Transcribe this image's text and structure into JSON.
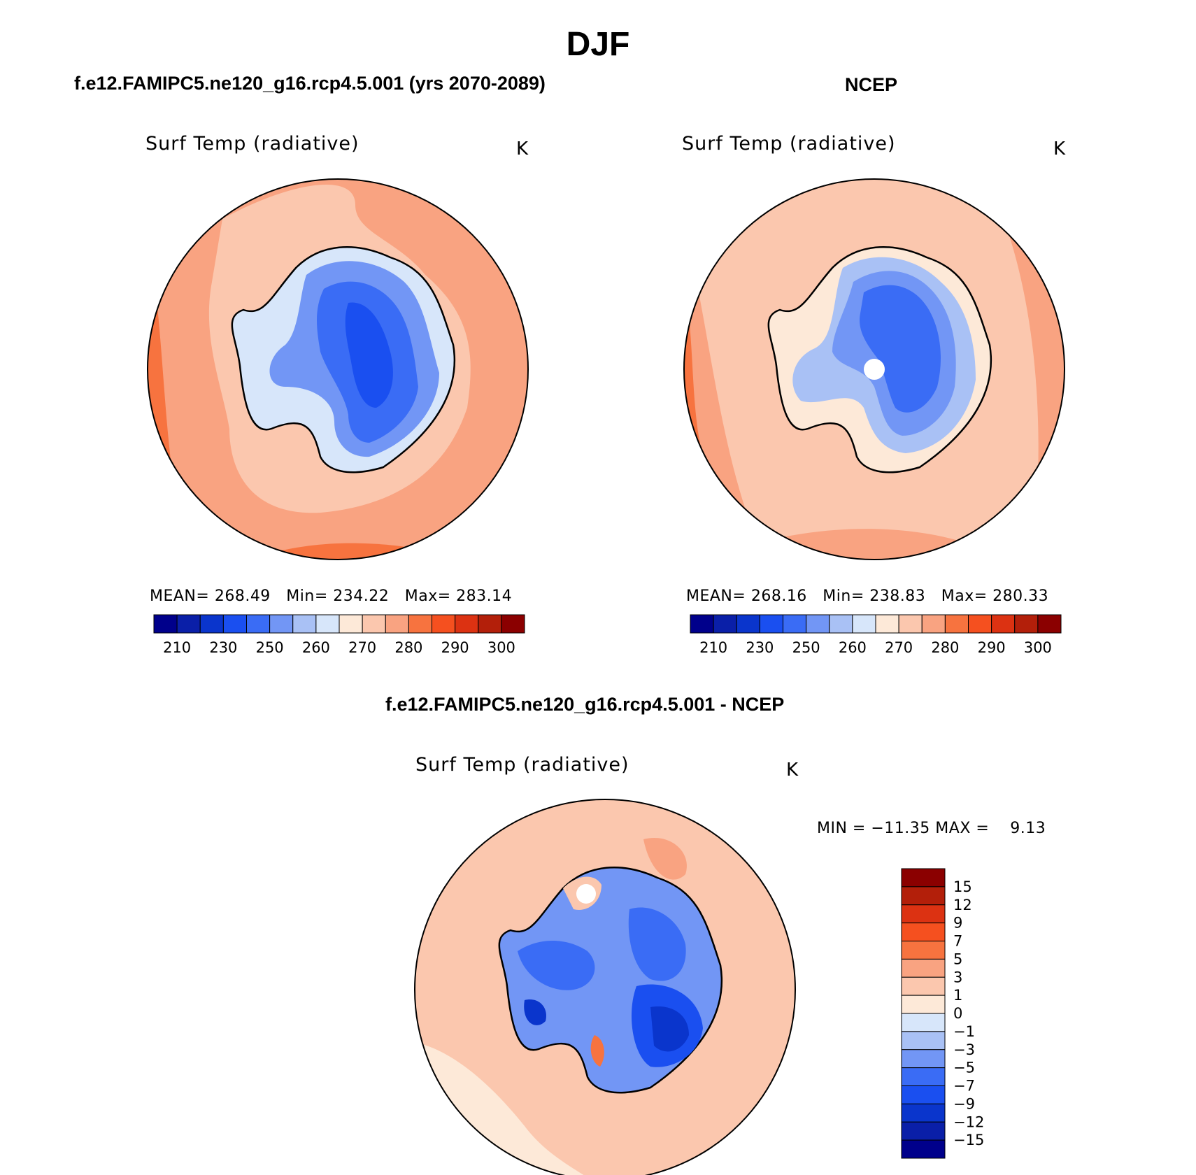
{
  "figure": {
    "title": "DJF"
  },
  "panels": [
    {
      "id": "model",
      "title": "f.e12.FAMIPC5.ne120_g16.rcp4.5.001 (yrs 2070-2089)",
      "variable": "Surf Temp (radiative)",
      "units": "K",
      "stats": {
        "mean_label": "MEAN=",
        "mean": "268.49",
        "min_label": "Min=",
        "min": "234.22",
        "max_label": "Max=",
        "max": "283.14"
      }
    },
    {
      "id": "obs",
      "title": "NCEP",
      "variable": "Surf Temp (radiative)",
      "units": "K",
      "stats": {
        "mean_label": "MEAN=",
        "mean": "268.16",
        "min_label": "Min=",
        "min": "238.83",
        "max_label": "Max=",
        "max": "280.33"
      }
    },
    {
      "id": "diff",
      "title": "f.e12.FAMIPC5.ne120_g16.rcp4.5.001 - NCEP",
      "variable": "Surf Temp (radiative)",
      "units": "K",
      "stats": {
        "min_label": "MIN =",
        "min": "−11.35",
        "max_label": "MAX =",
        "max": "9.13"
      }
    }
  ],
  "colorbars": {
    "absolute": {
      "orientation": "horizontal",
      "colors": [
        "#00008b",
        "#0a1fa8",
        "#0a35cc",
        "#1a4ff0",
        "#3a6cf5",
        "#7296f5",
        "#a9c1f5",
        "#d7e6fa",
        "#fde9d8",
        "#fbc7ae",
        "#f9a381",
        "#f7733f",
        "#f5501f",
        "#dc3212",
        "#b31f0a",
        "#8b0000"
      ],
      "tick_labels": [
        "210",
        "230",
        "250",
        "260",
        "270",
        "280",
        "290",
        "300"
      ]
    },
    "difference": {
      "orientation": "vertical",
      "colors": [
        "#8b0000",
        "#b31f0a",
        "#dc3212",
        "#f5501f",
        "#f7733f",
        "#f9a381",
        "#fbc7ae",
        "#fde9d8",
        "#d7e6fa",
        "#a9c1f5",
        "#7296f5",
        "#3a6cf5",
        "#1a4ff0",
        "#0a35cc",
        "#0a1fa8",
        "#00008b"
      ],
      "tick_labels": [
        "15",
        "12",
        "9",
        "7",
        "5",
        "3",
        "1",
        "0",
        "−1",
        "−3",
        "−5",
        "−7",
        "−9",
        "−12",
        "−15"
      ]
    }
  },
  "map": {
    "projection": "south polar stereographic",
    "region": "Antarctica"
  }
}
